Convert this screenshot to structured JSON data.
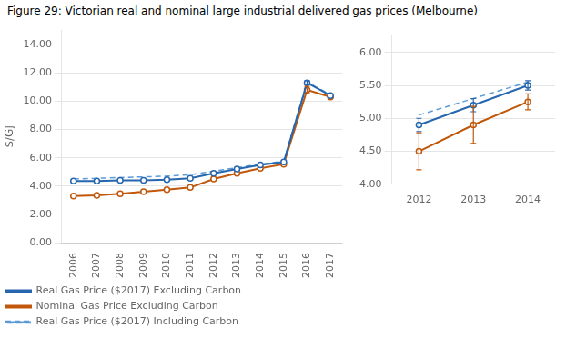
{
  "chart_data": [
    {
      "type": "line",
      "title": "Figure 29: Victorian real and nominal large industrial delivered gas prices (Melbourne)",
      "ylabel": "$/GJ",
      "x": [
        2006,
        2007,
        2008,
        2009,
        2010,
        2011,
        2012,
        2013,
        2014,
        2015,
        2016,
        2017
      ],
      "series": [
        {
          "name": "Real Gas Price ($2017) Excluding Carbon",
          "color": "#2566ae",
          "marker": "circle",
          "line_style": "solid",
          "values": [
            4.35,
            4.35,
            4.4,
            4.4,
            4.45,
            4.55,
            4.9,
            5.2,
            5.5,
            5.7,
            11.3,
            10.4
          ],
          "errors": [
            null,
            null,
            null,
            null,
            null,
            null,
            null,
            null,
            null,
            null,
            0.15,
            null
          ]
        },
        {
          "name": "Nominal Gas Price Excluding Carbon",
          "color": "#c0570a",
          "marker": "circle",
          "line_style": "solid",
          "values": [
            3.3,
            3.35,
            3.45,
            3.6,
            3.75,
            3.9,
            4.5,
            4.9,
            5.25,
            5.55,
            10.8,
            10.3
          ],
          "errors": [
            null,
            null,
            null,
            null,
            null,
            null,
            null,
            null,
            null,
            null,
            0.25,
            null
          ]
        },
        {
          "name": "Real Gas Price ($2017) Including Carbon",
          "color": "#5b9bd5",
          "line_style": "dashed",
          "values": [
            4.5,
            4.55,
            4.6,
            4.65,
            4.7,
            4.8,
            5.05,
            5.3,
            5.55,
            5.75,
            11.35,
            10.45
          ]
        }
      ],
      "xlim": [
        2005.5,
        2017.5
      ],
      "xticks": [
        2006,
        2007,
        2008,
        2009,
        2010,
        2011,
        2012,
        2013,
        2014,
        2015,
        2016,
        2017
      ],
      "ylim": [
        0.0,
        15.0
      ],
      "yticks": [
        {
          "value": 0,
          "label": "0.00"
        },
        {
          "value": 2,
          "label": "2.00"
        },
        {
          "value": 4,
          "label": "4.00"
        },
        {
          "value": 6,
          "label": "6.00"
        },
        {
          "value": 8,
          "label": "8.00"
        },
        {
          "value": 10,
          "label": "10.00"
        },
        {
          "value": 12,
          "label": "12.00"
        },
        {
          "value": 14,
          "label": "14.00"
        }
      ],
      "grid": true,
      "legend": "lower left"
    },
    {
      "type": "line",
      "x": [
        2012,
        2013,
        2014
      ],
      "series": [
        {
          "color": "#2566ae",
          "marker": "circle",
          "line_style": "solid",
          "values": [
            4.9,
            5.2,
            5.5
          ],
          "errors": [
            0.1,
            0.1,
            0.07
          ]
        },
        {
          "color": "#c0570a",
          "marker": "circle",
          "line_style": "solid",
          "values": [
            4.5,
            4.9,
            5.25
          ],
          "errors": [
            0.28,
            0.28,
            0.12
          ]
        },
        {
          "color": "#5b9bd5",
          "line_style": "dashed",
          "values": [
            5.05,
            5.3,
            5.55
          ]
        }
      ],
      "xlim": [
        2011.5,
        2014.5
      ],
      "xticks": [
        2012,
        2013,
        2014
      ],
      "ylim": [
        4.0,
        6.25
      ],
      "yticks": [
        {
          "value": 4,
          "label": "4.00"
        },
        {
          "value": 4.5,
          "label": "4.50"
        },
        {
          "value": 5,
          "label": "5.00"
        },
        {
          "value": 5.5,
          "label": "5.50"
        },
        {
          "value": 6,
          "label": "6.00"
        }
      ],
      "grid": true
    }
  ]
}
